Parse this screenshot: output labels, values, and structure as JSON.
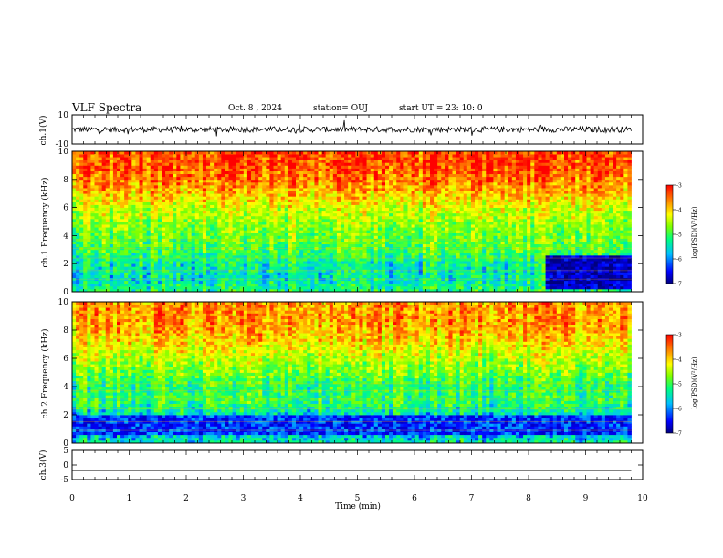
{
  "header": {
    "title": "VLF Spectra",
    "date": "Oct. 8 , 2024",
    "station": "station= OUJ",
    "start": "start UT = 23: 10: 0"
  },
  "colorbar": {
    "label": "log(PSD)(V²/Hz)",
    "ticks": [
      -3,
      -4,
      -5,
      -6,
      -7
    ],
    "range": [
      -7,
      -3
    ],
    "colors": [
      "#00007f",
      "#0000ff",
      "#00bfff",
      "#00ff80",
      "#80ff00",
      "#ffff00",
      "#ff8000",
      "#ff0000"
    ]
  },
  "chart_data": [
    {
      "type": "line",
      "name": "ch1-waveform",
      "ylabel": "ch.1(V)",
      "ylim": [
        -10,
        10
      ],
      "yticks": [
        "10",
        "-10"
      ],
      "xlim": [
        0,
        10
      ],
      "mean_level": 0,
      "noise_amplitude": 2
    },
    {
      "type": "heatmap",
      "name": "ch1-spectrogram",
      "ylabel": "ch.1 Frequency (kHz)",
      "ylim": [
        0,
        10
      ],
      "yticks": [
        "0",
        "2",
        "4",
        "6",
        "8",
        "10"
      ],
      "xlim": [
        0,
        10
      ],
      "data_end_min": 9.8,
      "psd_profile": [
        {
          "f": 0,
          "v": -5.2
        },
        {
          "f": 1,
          "v": -5.5
        },
        {
          "f": 2,
          "v": -5.4
        },
        {
          "f": 3,
          "v": -5.0
        },
        {
          "f": 4,
          "v": -4.8
        },
        {
          "f": 5,
          "v": -4.6
        },
        {
          "f": 6,
          "v": -4.3
        },
        {
          "f": 7,
          "v": -3.9
        },
        {
          "f": 8,
          "v": -3.5
        },
        {
          "f": 9,
          "v": -3.3
        },
        {
          "f": 10,
          "v": -3.3
        }
      ],
      "quiet_region": {
        "t_start": 8.25,
        "t_end": 9.8,
        "f_start": 0.3,
        "f_end": 2.6,
        "v": -6.7
      }
    },
    {
      "type": "heatmap",
      "name": "ch2-spectrogram",
      "ylabel": "ch.2 Frequency (kHz)",
      "ylim": [
        0,
        10
      ],
      "yticks": [
        "0",
        "2",
        "4",
        "6",
        "8",
        "10"
      ],
      "xlim": [
        0,
        10
      ],
      "data_end_min": 9.8,
      "psd_profile": [
        {
          "f": 0,
          "v": -5.4
        },
        {
          "f": 1,
          "v": -6.1
        },
        {
          "f": 2,
          "v": -5.6
        },
        {
          "f": 3,
          "v": -5.1
        },
        {
          "f": 4,
          "v": -5.2
        },
        {
          "f": 5,
          "v": -4.8
        },
        {
          "f": 6,
          "v": -4.5
        },
        {
          "f": 7,
          "v": -4.1
        },
        {
          "f": 8,
          "v": -3.8
        },
        {
          "f": 9,
          "v": -3.7
        },
        {
          "f": 10,
          "v": -3.7
        }
      ],
      "quiet_region": {
        "t_start": 0,
        "t_end": 9.8,
        "f_start": 0.6,
        "f_end": 2.0,
        "v": -6.3
      }
    },
    {
      "type": "line",
      "name": "ch3-waveform",
      "ylabel": "ch.3(V)",
      "ylim": [
        -5,
        5
      ],
      "yticks": [
        "5",
        "0",
        "-5"
      ],
      "xlim": [
        0,
        10
      ],
      "mean_level": -1.8,
      "noise_amplitude": 0
    }
  ],
  "xaxis": {
    "label": "Time (min)",
    "ticks": [
      "0",
      "1",
      "2",
      "3",
      "4",
      "5",
      "6",
      "7",
      "8",
      "9",
      "10"
    ]
  }
}
